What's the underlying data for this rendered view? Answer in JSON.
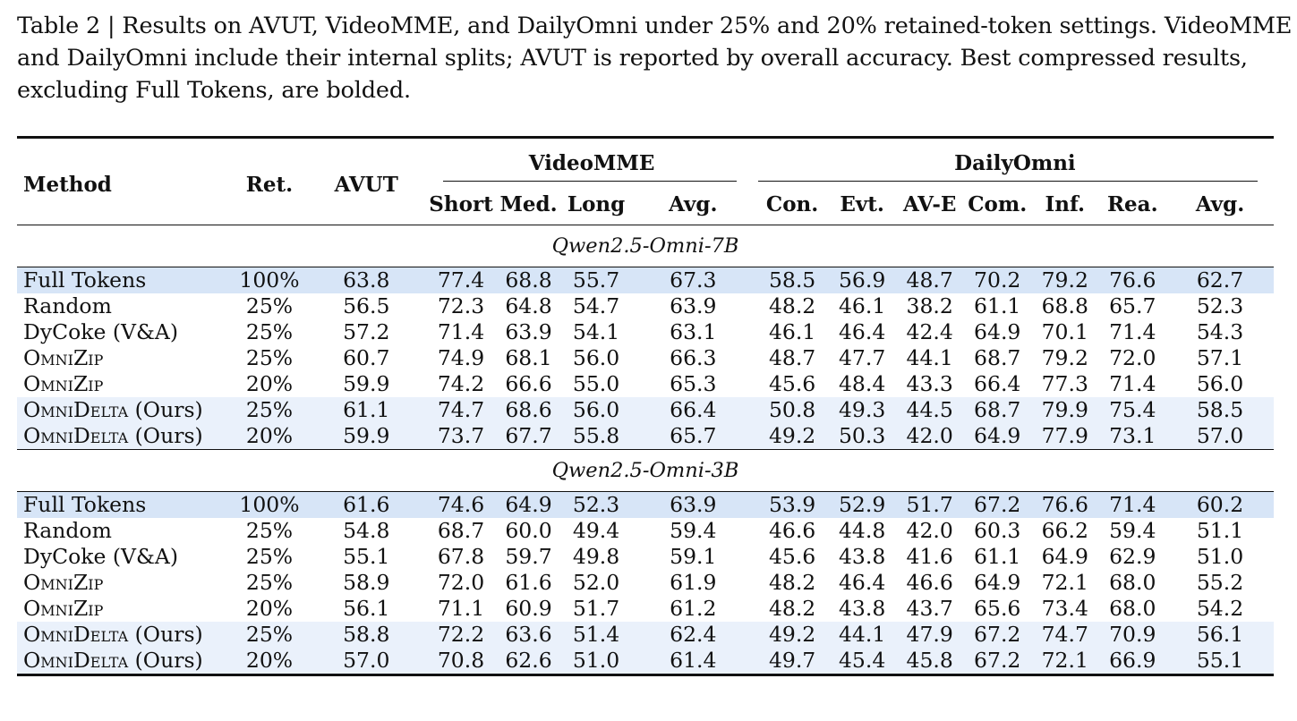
{
  "caption": {
    "lines": [
      "Table 2 | Results on AVUT, VideoMME, and DailyOmni under 25% and 20% retained-token settings. VideoMME",
      "and DailyOmni include their internal splits; AVUT is reported by overall accuracy. Best compressed results,",
      "excluding Full Tokens, are bolded."
    ]
  },
  "table": {
    "headers": {
      "method": "Method",
      "ret": "Ret.",
      "avut": "AVUT",
      "videomme": "VideoMME",
      "dailyomni": "DailyOmni",
      "videomme_cols": [
        "Short",
        "Med.",
        "Long",
        "Avg."
      ],
      "dailyomni_cols": [
        "Con.",
        "Evt.",
        "AV-E",
        "Com.",
        "Inf.",
        "Rea.",
        "Avg."
      ]
    },
    "sections": [
      {
        "title": "Qwen2.5-Omni-7B",
        "rows": [
          {
            "method": "Full Tokens",
            "ret": "100%",
            "highlight": "full",
            "values": [
              "63.8",
              "77.4",
              "68.8",
              "55.7",
              "67.3",
              "58.5",
              "56.9",
              "48.7",
              "70.2",
              "79.2",
              "76.6",
              "62.7"
            ],
            "bold": []
          },
          {
            "method": "Random",
            "ret": "25%",
            "highlight": "",
            "values": [
              "56.5",
              "72.3",
              "64.8",
              "54.7",
              "63.9",
              "48.2",
              "46.1",
              "38.2",
              "61.1",
              "68.8",
              "65.7",
              "52.3"
            ],
            "bold": []
          },
          {
            "method": "DyCoke (V&A)",
            "ret": "25%",
            "highlight": "",
            "values": [
              "57.2",
              "71.4",
              "63.9",
              "54.1",
              "63.1",
              "46.1",
              "46.4",
              "42.4",
              "64.9",
              "70.1",
              "71.4",
              "54.3"
            ],
            "bold": []
          },
          {
            "method": "OmniZip",
            "ret": "25%",
            "highlight": "",
            "smallcaps": true,
            "values": [
              "60.7",
              "74.9",
              "68.1",
              "56.0",
              "66.3",
              "48.7",
              "47.7",
              "44.1",
              "68.7",
              "79.2",
              "72.0",
              "57.1"
            ],
            "bold": [
              1,
              3,
              8
            ]
          },
          {
            "method": "OmniZip",
            "ret": "20%",
            "highlight": "",
            "smallcaps": true,
            "values": [
              "59.9",
              "74.2",
              "66.6",
              "55.0",
              "65.3",
              "45.6",
              "48.4",
              "43.3",
              "66.4",
              "77.3",
              "71.4",
              "56.0"
            ],
            "bold": []
          },
          {
            "method": "OmniDelta",
            "suffix": " (Ours)",
            "ret": "25%",
            "highlight": "ours",
            "smallcaps": true,
            "values": [
              "61.1",
              "74.7",
              "68.6",
              "56.0",
              "66.4",
              "50.8",
              "49.3",
              "44.5",
              "68.7",
              "79.9",
              "75.4",
              "58.5"
            ],
            "bold": [
              0,
              2,
              3,
              4,
              5,
              7,
              8,
              9,
              10,
              11
            ]
          },
          {
            "method": "OmniDelta",
            "suffix": " (Ours)",
            "ret": "20%",
            "highlight": "ours",
            "smallcaps": true,
            "values": [
              "59.9",
              "73.7",
              "67.7",
              "55.8",
              "65.7",
              "49.2",
              "50.3",
              "42.0",
              "64.9",
              "77.9",
              "73.1",
              "57.0"
            ],
            "bold": [
              6
            ]
          }
        ]
      },
      {
        "title": "Qwen2.5-Omni-3B",
        "rows": [
          {
            "method": "Full Tokens",
            "ret": "100%",
            "highlight": "full",
            "values": [
              "61.6",
              "74.6",
              "64.9",
              "52.3",
              "63.9",
              "53.9",
              "52.9",
              "51.7",
              "67.2",
              "76.6",
              "71.4",
              "60.2"
            ],
            "bold": []
          },
          {
            "method": "Random",
            "ret": "25%",
            "highlight": "",
            "values": [
              "54.8",
              "68.7",
              "60.0",
              "49.4",
              "59.4",
              "46.6",
              "44.8",
              "42.0",
              "60.3",
              "66.2",
              "59.4",
              "51.1"
            ],
            "bold": []
          },
          {
            "method": "DyCoke (V&A)",
            "ret": "25%",
            "highlight": "",
            "values": [
              "55.1",
              "67.8",
              "59.7",
              "49.8",
              "59.1",
              "45.6",
              "43.8",
              "41.6",
              "61.1",
              "64.9",
              "62.9",
              "51.0"
            ],
            "bold": []
          },
          {
            "method": "OmniZip",
            "ret": "25%",
            "highlight": "",
            "smallcaps": true,
            "values": [
              "58.9",
              "72.0",
              "61.6",
              "52.0",
              "61.9",
              "48.2",
              "46.4",
              "46.6",
              "64.9",
              "72.1",
              "68.0",
              "55.2"
            ],
            "bold": [
              0,
              3,
              6
            ]
          },
          {
            "method": "OmniZip",
            "ret": "20%",
            "highlight": "",
            "smallcaps": true,
            "values": [
              "56.1",
              "71.1",
              "60.9",
              "51.7",
              "61.2",
              "48.2",
              "43.8",
              "43.7",
              "65.6",
              "73.4",
              "68.0",
              "54.2"
            ],
            "bold": []
          },
          {
            "method": "OmniDelta",
            "suffix": " (Ours)",
            "ret": "25%",
            "highlight": "ours",
            "smallcaps": true,
            "values": [
              "58.8",
              "72.2",
              "63.6",
              "51.4",
              "62.4",
              "49.2",
              "44.1",
              "47.9",
              "67.2",
              "74.7",
              "70.9",
              "56.1"
            ],
            "bold": [
              1,
              2,
              4,
              7,
              8,
              9,
              10,
              11
            ]
          },
          {
            "method": "OmniDelta",
            "suffix": " (Ours)",
            "ret": "20%",
            "highlight": "ours",
            "smallcaps": true,
            "values": [
              "57.0",
              "70.8",
              "62.6",
              "51.0",
              "61.4",
              "49.7",
              "45.4",
              "45.8",
              "67.2",
              "72.1",
              "66.9",
              "55.1"
            ],
            "bold": [
              5,
              8
            ]
          }
        ]
      }
    ]
  }
}
